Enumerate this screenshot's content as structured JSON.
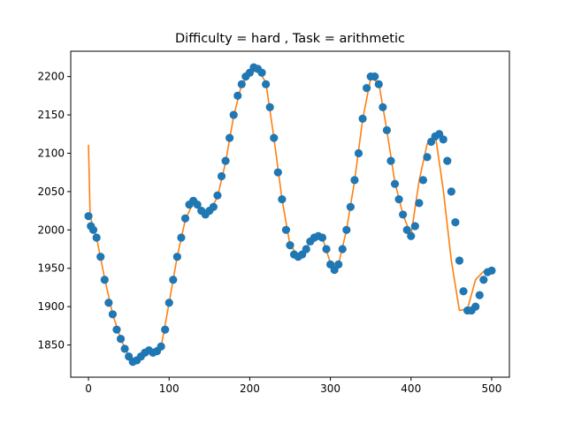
{
  "chart_data": {
    "type": "scatter",
    "title": "Difficulty = hard , Task = arithmetic",
    "xlabel": "",
    "ylabel": "",
    "xlim": [
      -22,
      522
    ],
    "ylim": [
      1808,
      2233
    ],
    "x_ticks": [
      0,
      100,
      200,
      300,
      400,
      500
    ],
    "y_ticks": [
      1850,
      1900,
      1950,
      2000,
      2050,
      2100,
      2150,
      2200
    ],
    "grid": false,
    "legend": "none",
    "colors": {
      "points": "#1f77b4",
      "line": "#ff7f0e",
      "axes": "#000000"
    },
    "series": [
      {
        "kind": "scatter",
        "x": [
          0,
          3,
          6,
          10,
          15,
          20,
          25,
          30,
          35,
          40,
          45,
          50,
          55,
          60,
          65,
          70,
          75,
          80,
          85,
          90,
          95,
          100,
          105,
          110,
          115,
          120,
          125,
          130,
          135,
          140,
          145,
          150,
          155,
          160,
          165,
          170,
          175,
          180,
          185,
          190,
          195,
          200,
          205,
          210,
          215,
          220,
          225,
          230,
          235,
          240,
          245,
          250,
          255,
          260,
          265,
          270,
          275,
          280,
          285,
          290,
          295,
          300,
          305,
          310,
          315,
          320,
          325,
          330,
          335,
          340,
          345,
          350,
          355,
          360,
          365,
          370,
          375,
          380,
          385,
          390,
          395,
          400,
          405,
          410,
          415,
          420,
          425,
          430,
          435,
          440,
          445,
          450,
          455,
          460,
          465,
          470,
          475,
          480,
          485,
          490,
          495,
          500
        ],
        "y": [
          2018,
          2005,
          2000,
          1990,
          1965,
          1935,
          1905,
          1890,
          1870,
          1858,
          1845,
          1835,
          1828,
          1830,
          1835,
          1840,
          1843,
          1840,
          1842,
          1848,
          1870,
          1905,
          1935,
          1965,
          1990,
          2015,
          2033,
          2038,
          2033,
          2025,
          2020,
          2025,
          2030,
          2045,
          2070,
          2090,
          2120,
          2150,
          2175,
          2190,
          2200,
          2205,
          2212,
          2210,
          2205,
          2190,
          2160,
          2120,
          2075,
          2040,
          2000,
          1980,
          1968,
          1965,
          1968,
          1975,
          1985,
          1990,
          1992,
          1990,
          1975,
          1955,
          1948,
          1955,
          1975,
          2000,
          2030,
          2065,
          2100,
          2145,
          2185,
          2200,
          2200,
          2190,
          2160,
          2130,
          2090,
          2060,
          2040,
          2020,
          2000,
          1992,
          2005,
          2035,
          2065,
          2095,
          2115,
          2122,
          2125,
          2118,
          2090,
          2050,
          2010,
          1960,
          1920,
          1895,
          1895,
          1900,
          1915,
          1935,
          1945,
          1947
        ]
      },
      {
        "kind": "line",
        "x": [
          0,
          2,
          4,
          10,
          20,
          30,
          40,
          50,
          60,
          70,
          80,
          90,
          100,
          110,
          120,
          130,
          140,
          150,
          160,
          170,
          180,
          190,
          200,
          210,
          220,
          230,
          240,
          250,
          260,
          270,
          280,
          290,
          300,
          310,
          320,
          330,
          340,
          350,
          360,
          370,
          380,
          390,
          400,
          410,
          420,
          430,
          440,
          450,
          460,
          470,
          480,
          490,
          500
        ],
        "y": [
          2111,
          2020,
          2010,
          1990,
          1937,
          1890,
          1858,
          1835,
          1830,
          1838,
          1840,
          1847,
          1905,
          1965,
          2013,
          2036,
          2026,
          2024,
          2043,
          2088,
          2148,
          2190,
          2203,
          2210,
          2192,
          2120,
          2040,
          1980,
          1967,
          1977,
          1990,
          1990,
          1957,
          1955,
          2000,
          2064,
          2144,
          2198,
          2192,
          2130,
          2062,
          2020,
          1993,
          2064,
          2112,
          2125,
          2052,
          1960,
          1895,
          1897,
          1935,
          1946,
          1946
        ]
      }
    ]
  }
}
